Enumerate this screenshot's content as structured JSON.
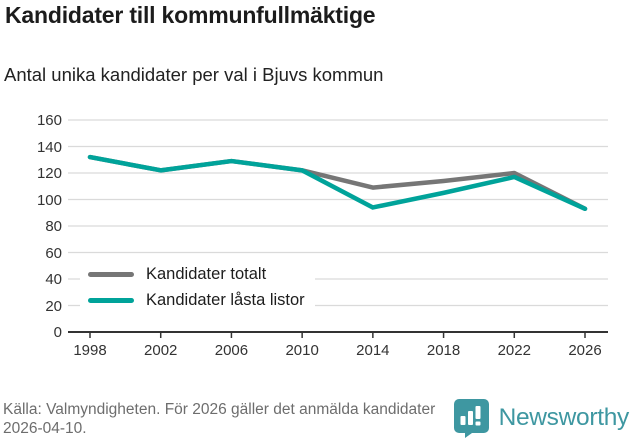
{
  "header": {
    "title": "Kandidater till kommunfullmäktige",
    "subtitle": "Antal unika kandidater per val i Bjuvs kommun"
  },
  "chart_data": {
    "type": "line",
    "categories": [
      "1998",
      "2002",
      "2006",
      "2010",
      "2014",
      "2018",
      "2022",
      "2026"
    ],
    "series": [
      {
        "name": "Kandidater totalt",
        "color": "#767676",
        "values": [
          132,
          122,
          129,
          122,
          109,
          114,
          120,
          93
        ]
      },
      {
        "name": "Kandidater låsta listor",
        "color": "#00a39a",
        "values": [
          132,
          122,
          129,
          122,
          94,
          105,
          117,
          93
        ]
      }
    ],
    "title": "Kandidater till kommunfullmäktige",
    "subtitle": "Antal unika kandidater per val i Bjuvs kommun",
    "xlabel": "",
    "ylabel": "",
    "ylim": [
      0,
      160
    ],
    "yticks": [
      0,
      20,
      40,
      60,
      80,
      100,
      120,
      140,
      160
    ],
    "grid": true,
    "legend_position": "inside-bottom-left"
  },
  "footer": {
    "source": "Källa: Valmyndigheten. För 2026 gäller det anmälda kandidater 2026-04-10.",
    "brand": "Newsworthy"
  },
  "colors": {
    "accent_teal": "#00a39a",
    "gray_line": "#767676",
    "brand_teal": "#3e97a1",
    "grid": "#dadada",
    "axis": "#333333",
    "text_muted": "#6d6d6d"
  }
}
